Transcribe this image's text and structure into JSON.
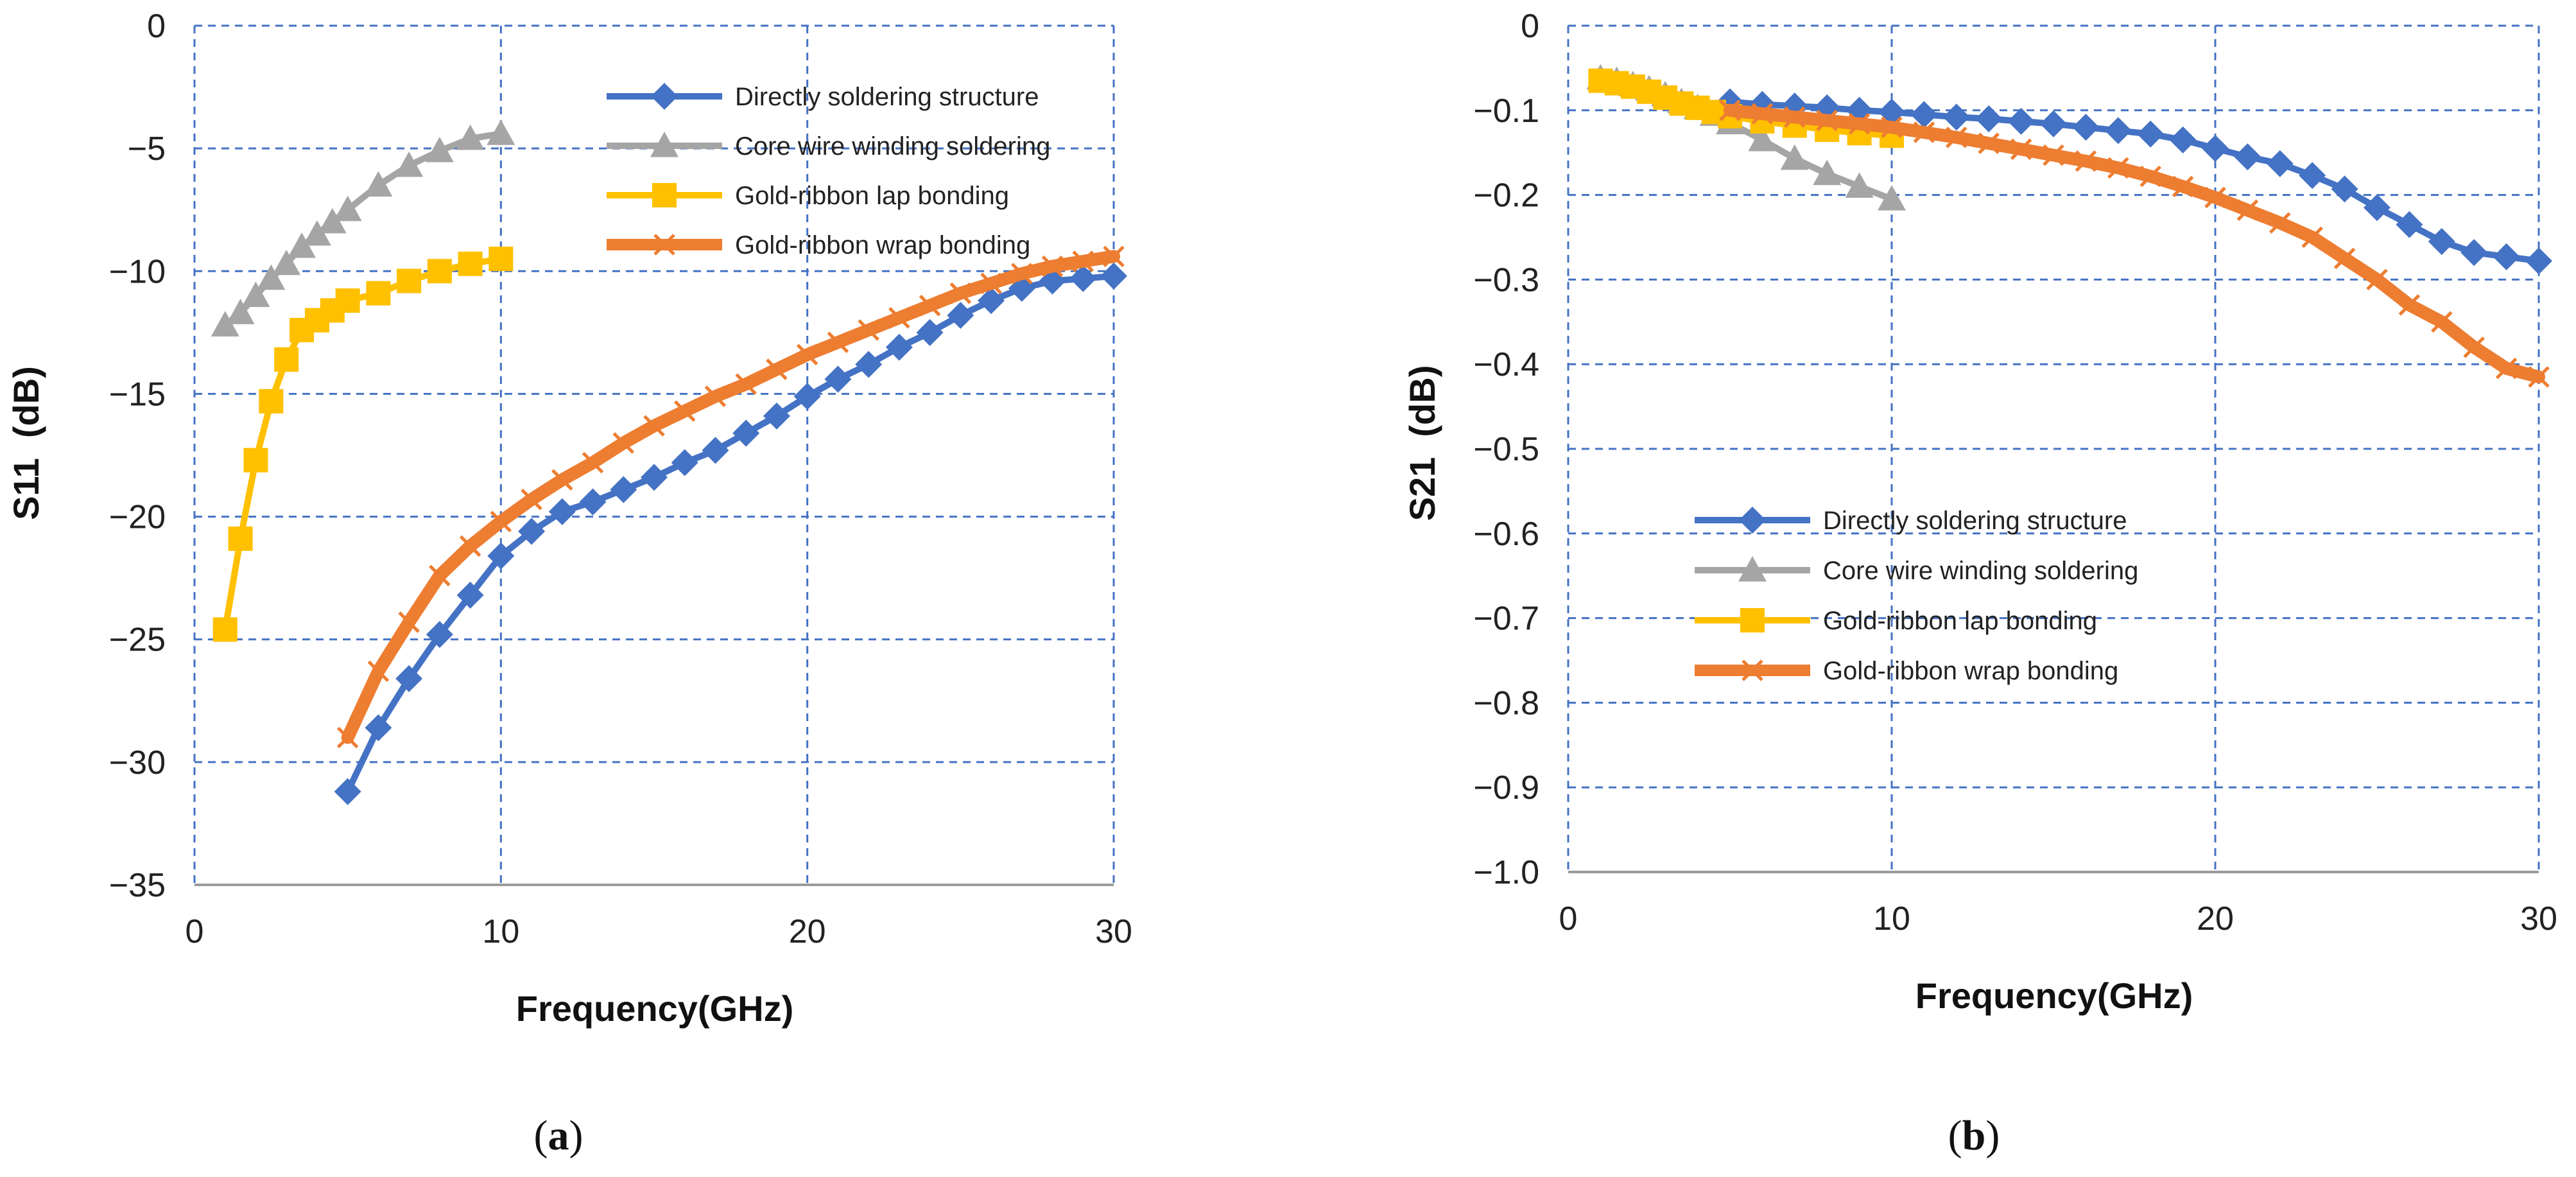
{
  "chart_data": [
    {
      "type": "line",
      "panel_label": "a",
      "xlabel": "Frequency(GHz)",
      "ylabel": "S11  (dB)",
      "xlim": [
        0,
        30
      ],
      "ylim": [
        -35,
        0
      ],
      "xticks": [
        "0",
        "10",
        "20",
        "30"
      ],
      "yticks": [
        "0",
        "−5",
        "−10",
        "−15",
        "−20",
        "−25",
        "−30",
        "−35"
      ],
      "grid": true,
      "legend_position": "top-right",
      "series": [
        {
          "name": "Directly soldering structure",
          "color": "#4472C4",
          "marker": "diamond",
          "x": [
            5,
            6,
            7,
            8,
            9,
            10,
            11,
            12,
            13,
            14,
            15,
            16,
            17,
            18,
            19,
            20,
            21,
            22,
            23,
            24,
            25,
            26,
            27,
            28,
            29,
            30
          ],
          "y": [
            -31.2,
            -28.6,
            -26.6,
            -24.8,
            -23.2,
            -21.6,
            -20.6,
            -19.8,
            -19.4,
            -18.9,
            -18.4,
            -17.8,
            -17.3,
            -16.6,
            -15.9,
            -15.1,
            -14.4,
            -13.8,
            -13.1,
            -12.5,
            -11.8,
            -11.2,
            -10.7,
            -10.4,
            -10.3,
            -10.2
          ]
        },
        {
          "name": "Core wire winding soldering",
          "color": "#A5A5A5",
          "marker": "triangle",
          "x": [
            1,
            1.5,
            2,
            2.5,
            3,
            3.5,
            4,
            4.5,
            5,
            6,
            7,
            8,
            9,
            10
          ],
          "y": [
            -12.2,
            -11.7,
            -11.0,
            -10.3,
            -9.7,
            -9.0,
            -8.5,
            -8.0,
            -7.5,
            -6.5,
            -5.7,
            -5.1,
            -4.6,
            -4.4
          ]
        },
        {
          "name": "Gold-ribbon lap bonding",
          "color": "#FFC000",
          "marker": "square",
          "x": [
            1,
            1.5,
            2,
            2.5,
            3,
            3.5,
            4,
            4.5,
            5,
            6,
            7,
            8,
            9,
            10
          ],
          "y": [
            -24.6,
            -20.9,
            -17.7,
            -15.3,
            -13.6,
            -12.4,
            -12.0,
            -11.6,
            -11.2,
            -10.9,
            -10.4,
            -10.0,
            -9.7,
            -9.5
          ]
        },
        {
          "name": "Gold-ribbon wrap bonding",
          "color": "#ED7D31",
          "marker": "x",
          "x": [
            5,
            6,
            7,
            8,
            9,
            10,
            11,
            12,
            13,
            14,
            15,
            16,
            17,
            18,
            19,
            20,
            21,
            22,
            23,
            24,
            25,
            26,
            27,
            28,
            29,
            30
          ],
          "y": [
            -29.0,
            -26.3,
            -24.3,
            -22.4,
            -21.2,
            -20.2,
            -19.3,
            -18.5,
            -17.8,
            -17.0,
            -16.3,
            -15.7,
            -15.1,
            -14.6,
            -14.0,
            -13.4,
            -12.9,
            -12.4,
            -11.9,
            -11.4,
            -10.9,
            -10.5,
            -10.1,
            -9.8,
            -9.6,
            -9.4
          ]
        }
      ]
    },
    {
      "type": "line",
      "panel_label": "b",
      "xlabel": "Frequency(GHz)",
      "ylabel": "S21  (dB)",
      "xlim": [
        0,
        30
      ],
      "ylim": [
        -1.0,
        0
      ],
      "xticks": [
        "0",
        "10",
        "20",
        "30"
      ],
      "yticks": [
        "0",
        "−0.1",
        "−0.2",
        "−0.3",
        "−0.4",
        "−0.5",
        "−0.6",
        "−0.7",
        "−0.8",
        "−0.9",
        "−1.0"
      ],
      "grid": true,
      "legend_position": "center-left",
      "series": [
        {
          "name": "Directly soldering structure",
          "color": "#4472C4",
          "marker": "diamond",
          "x": [
            5,
            6,
            7,
            8,
            9,
            10,
            11,
            12,
            13,
            14,
            15,
            16,
            17,
            18,
            19,
            20,
            21,
            22,
            23,
            24,
            25,
            26,
            27,
            28,
            29,
            30
          ],
          "y": [
            -0.09,
            -0.093,
            -0.095,
            -0.097,
            -0.1,
            -0.102,
            -0.105,
            -0.108,
            -0.11,
            -0.113,
            -0.116,
            -0.12,
            -0.124,
            -0.128,
            -0.135,
            -0.145,
            -0.155,
            -0.163,
            -0.177,
            -0.193,
            -0.215,
            -0.235,
            -0.255,
            -0.268,
            -0.273,
            -0.278
          ]
        },
        {
          "name": "Core wire winding soldering",
          "color": "#A5A5A5",
          "marker": "triangle",
          "x": [
            1,
            1.5,
            2,
            2.5,
            3,
            3.5,
            4,
            4.5,
            5,
            6,
            7,
            8,
            9,
            10
          ],
          "y": [
            -0.062,
            -0.065,
            -0.07,
            -0.075,
            -0.082,
            -0.09,
            -0.097,
            -0.105,
            -0.115,
            -0.135,
            -0.157,
            -0.175,
            -0.19,
            -0.205
          ]
        },
        {
          "name": "Gold-ribbon lap bonding",
          "color": "#FFC000",
          "marker": "square",
          "x": [
            1,
            1.5,
            2,
            2.5,
            3,
            3.5,
            4,
            4.5,
            5,
            6,
            7,
            8,
            9,
            10
          ],
          "y": [
            -0.065,
            -0.068,
            -0.072,
            -0.078,
            -0.085,
            -0.092,
            -0.097,
            -0.102,
            -0.107,
            -0.113,
            -0.118,
            -0.123,
            -0.127,
            -0.13
          ]
        },
        {
          "name": "Gold-ribbon wrap bonding",
          "color": "#ED7D31",
          "marker": "x",
          "x": [
            5,
            6,
            7,
            8,
            9,
            10,
            11,
            12,
            13,
            14,
            15,
            16,
            17,
            18,
            19,
            20,
            21,
            22,
            23,
            24,
            25,
            26,
            27,
            28,
            29,
            30
          ],
          "y": [
            -0.1,
            -0.104,
            -0.108,
            -0.112,
            -0.116,
            -0.12,
            -0.126,
            -0.132,
            -0.139,
            -0.146,
            -0.153,
            -0.16,
            -0.168,
            -0.178,
            -0.19,
            -0.203,
            -0.218,
            -0.233,
            -0.25,
            -0.275,
            -0.3,
            -0.33,
            -0.35,
            -0.38,
            -0.405,
            -0.415
          ]
        }
      ]
    }
  ]
}
